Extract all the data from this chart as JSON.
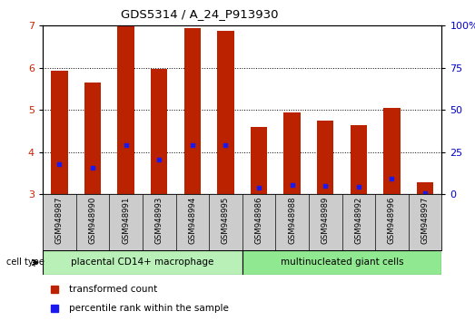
{
  "title": "GDS5314 / A_24_P913930",
  "samples": [
    "GSM948987",
    "GSM948990",
    "GSM948991",
    "GSM948993",
    "GSM948994",
    "GSM948995",
    "GSM948986",
    "GSM948988",
    "GSM948989",
    "GSM948992",
    "GSM948996",
    "GSM948997"
  ],
  "transformed_counts": [
    5.92,
    5.65,
    6.98,
    5.98,
    6.95,
    6.88,
    4.6,
    4.94,
    4.75,
    4.65,
    5.05,
    3.28
  ],
  "percentile_ranks": [
    3.72,
    3.63,
    4.17,
    3.82,
    4.17,
    4.17,
    3.15,
    3.22,
    3.2,
    3.18,
    3.37,
    3.03
  ],
  "group1_label": "placental CD14+ macrophage",
  "group2_label": "multinucleated giant cells",
  "group1_count": 6,
  "group2_count": 6,
  "bar_color": "#bb2200",
  "dot_color": "#1a1aee",
  "ylim_left": [
    3.0,
    7.0
  ],
  "ylim_right": [
    0,
    100
  ],
  "yticks_left": [
    3,
    4,
    5,
    6,
    7
  ],
  "yticks_right": [
    0,
    25,
    50,
    75,
    100
  ],
  "grid_lines": [
    4.0,
    5.0,
    6.0
  ],
  "background_color": "#ffffff",
  "tick_area_color": "#cccccc",
  "group1_bg_color": "#b8f0b8",
  "group2_bg_color": "#90e890",
  "legend_items": [
    "transformed count",
    "percentile rank within the sample"
  ],
  "cell_type_label": "cell type"
}
